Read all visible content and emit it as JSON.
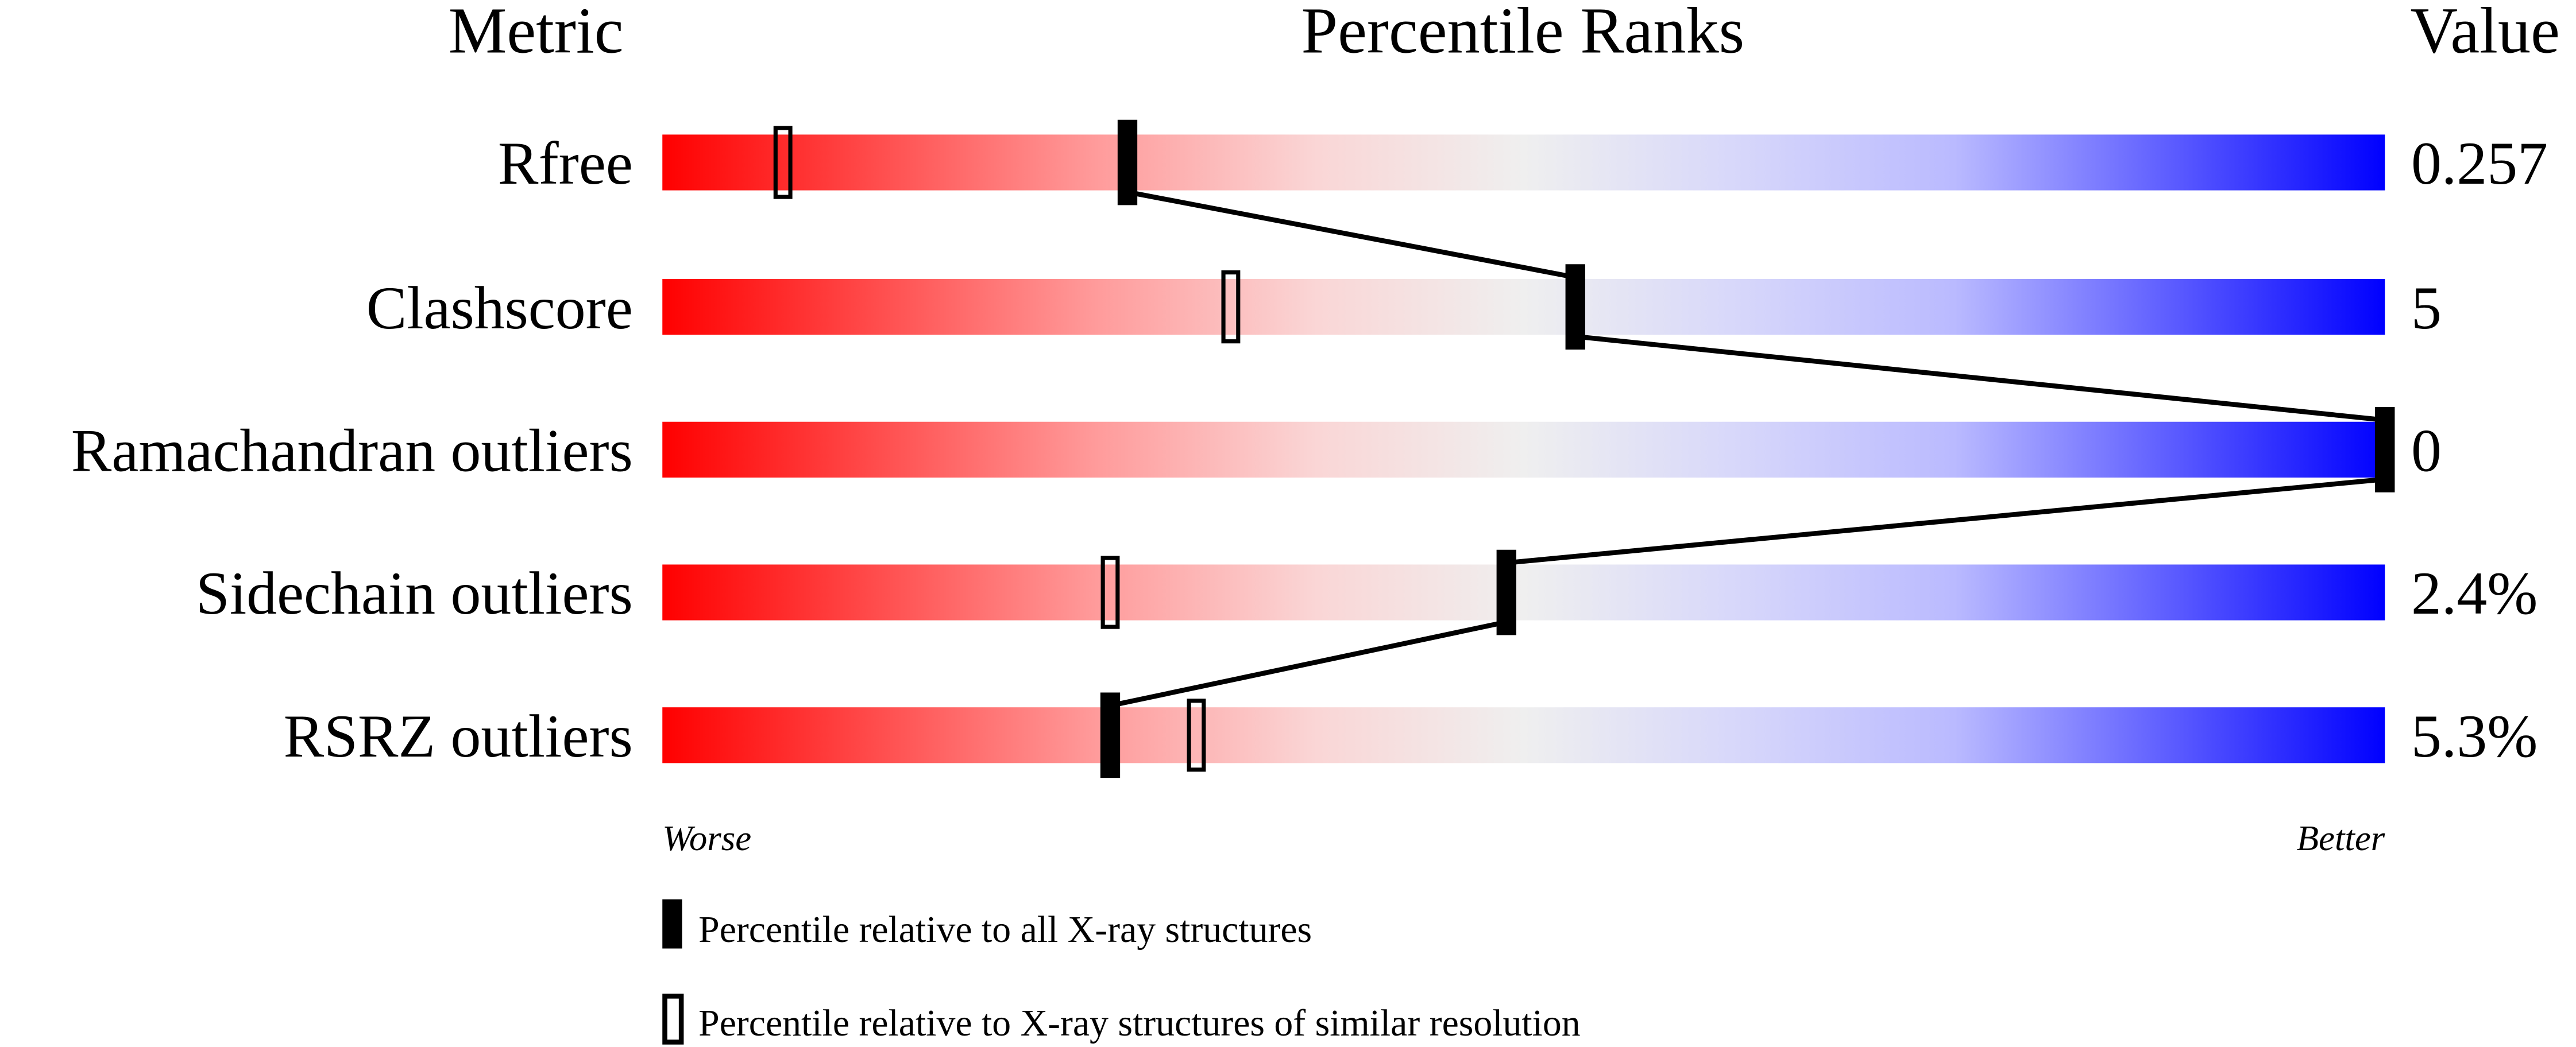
{
  "chart_data": {
    "type": "percentile-slider",
    "headers": {
      "metric": "Metric",
      "ranks": "Percentile Ranks",
      "value": "Value"
    },
    "xlim": [
      0,
      100
    ],
    "scale_labels": {
      "left": "Worse",
      "right": "Better"
    },
    "gradient_colors": [
      "#ff0000",
      "#f0f0f0",
      "#0000ff"
    ],
    "metrics": [
      {
        "name": "Rfree",
        "value": "0.257",
        "percentile_all": 27,
        "percentile_similar": 7
      },
      {
        "name": "Clashscore",
        "value": "5",
        "percentile_all": 53,
        "percentile_similar": 33
      },
      {
        "name": "Ramachandran outliers",
        "value": "0",
        "percentile_all": 100,
        "percentile_similar": null
      },
      {
        "name": "Sidechain outliers",
        "value": "2.4%",
        "percentile_all": 49,
        "percentile_similar": 26
      },
      {
        "name": "RSRZ outliers",
        "value": "5.3%",
        "percentile_all": 26,
        "percentile_similar": 31
      }
    ],
    "legend": [
      {
        "marker": "filled",
        "label": "Percentile relative to all X-ray structures"
      },
      {
        "marker": "open",
        "label": "Percentile relative to X-ray structures of similar resolution"
      }
    ]
  }
}
